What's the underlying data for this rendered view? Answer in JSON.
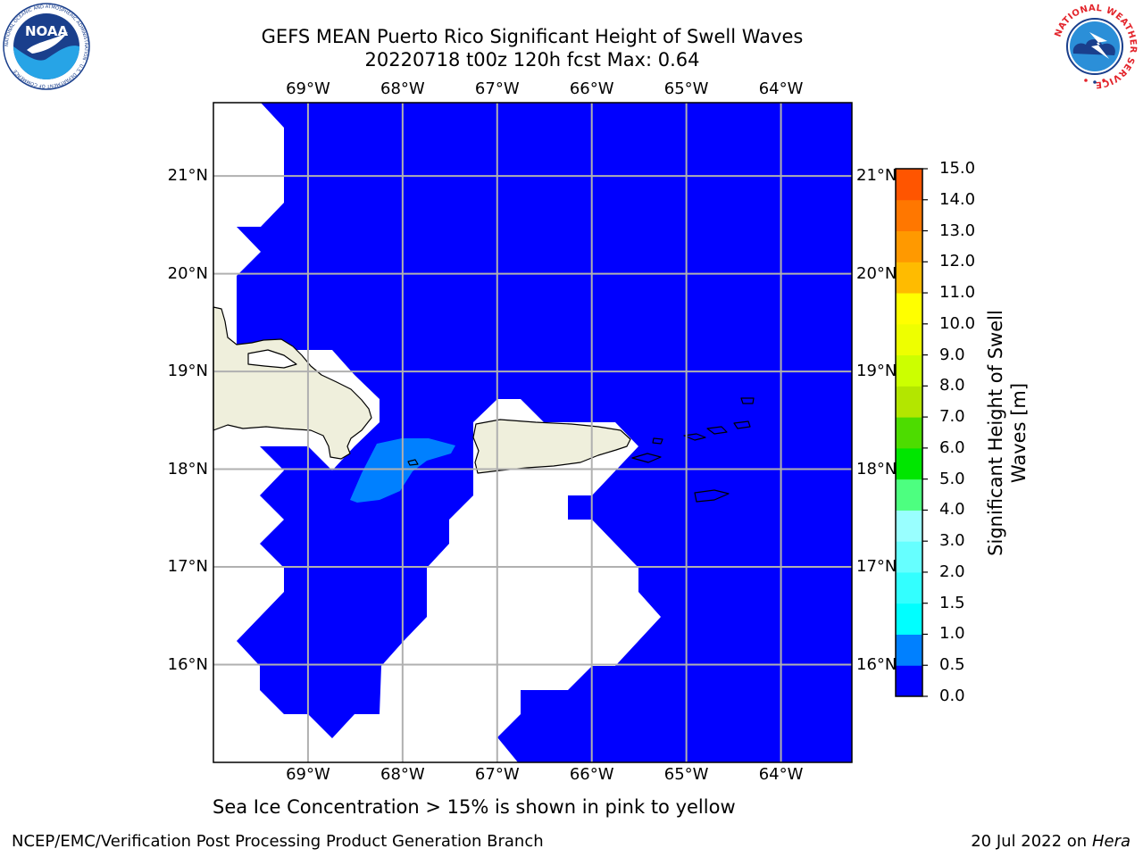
{
  "title": {
    "line1": "GEFS MEAN Puerto Rico Significant Height of Swell Waves",
    "line2": "20220718 t00z 120h fcst   Max: 0.64"
  },
  "map": {
    "lon_range": [
      -70.0,
      -63.25
    ],
    "lat_range": [
      15.0,
      21.75
    ],
    "lon_ticks": [
      {
        "value": -69,
        "label": "69°W"
      },
      {
        "value": -68,
        "label": "68°W"
      },
      {
        "value": -67,
        "label": "67°W"
      },
      {
        "value": -66,
        "label": "66°W"
      },
      {
        "value": -65,
        "label": "65°W"
      },
      {
        "value": -64,
        "label": "64°W"
      }
    ],
    "lat_ticks": [
      {
        "value": 21,
        "label": "21°N"
      },
      {
        "value": 20,
        "label": "20°N"
      },
      {
        "value": 19,
        "label": "19°N"
      },
      {
        "value": 18,
        "label": "18°N"
      },
      {
        "value": 17,
        "label": "17°N"
      },
      {
        "value": 16,
        "label": "16°N"
      }
    ],
    "grid": true,
    "ocean_color": "#0000ff",
    "swell_patch_color": "#0080ff",
    "land_color": "#efefdc",
    "no_data_color": "#ffffff"
  },
  "colorbar": {
    "title": "Significant Height of Swell Waves [m]",
    "levels": [
      {
        "label": "0.0",
        "color": "#0000ff"
      },
      {
        "label": "0.5",
        "color": "#0080ff"
      },
      {
        "label": "1.0",
        "color": "#00ffff"
      },
      {
        "label": "1.5",
        "color": "#33ffff"
      },
      {
        "label": "2.0",
        "color": "#66ffff"
      },
      {
        "label": "3.0",
        "color": "#99ffff"
      },
      {
        "label": "4.0",
        "color": "#4dff80"
      },
      {
        "label": "5.0",
        "color": "#00e600"
      },
      {
        "label": "6.0",
        "color": "#4ddc00"
      },
      {
        "label": "7.0",
        "color": "#b3e600"
      },
      {
        "label": "8.0",
        "color": "#ccff00"
      },
      {
        "label": "9.0",
        "color": "#eeff00"
      },
      {
        "label": "10.0",
        "color": "#ffff00"
      },
      {
        "label": "11.0",
        "color": "#ffbb00"
      },
      {
        "label": "12.0",
        "color": "#ff9900"
      },
      {
        "label": "13.0",
        "color": "#ff7700"
      },
      {
        "label": "14.0",
        "color": "#ff5500"
      },
      {
        "label": "15.0",
        "color": "#ff1100"
      }
    ]
  },
  "caption": "Sea Ice Concentration > 15% is shown in pink to yellow",
  "footer": {
    "left": "NCEP/EMC/Verification Post Processing Product Generation Branch",
    "right_prefix": "20 Jul 2022 on ",
    "right_machine": "Hera"
  },
  "logos": {
    "noaa": {
      "text": "NOAA",
      "ring_text": "NATIONAL OCEANIC AND ATMOSPHERIC ADMINISTRATION · U.S. DEPARTMENT OF COMMERCE"
    },
    "nws": {
      "ring_text": "NATIONAL WEATHER SERVICE"
    }
  }
}
